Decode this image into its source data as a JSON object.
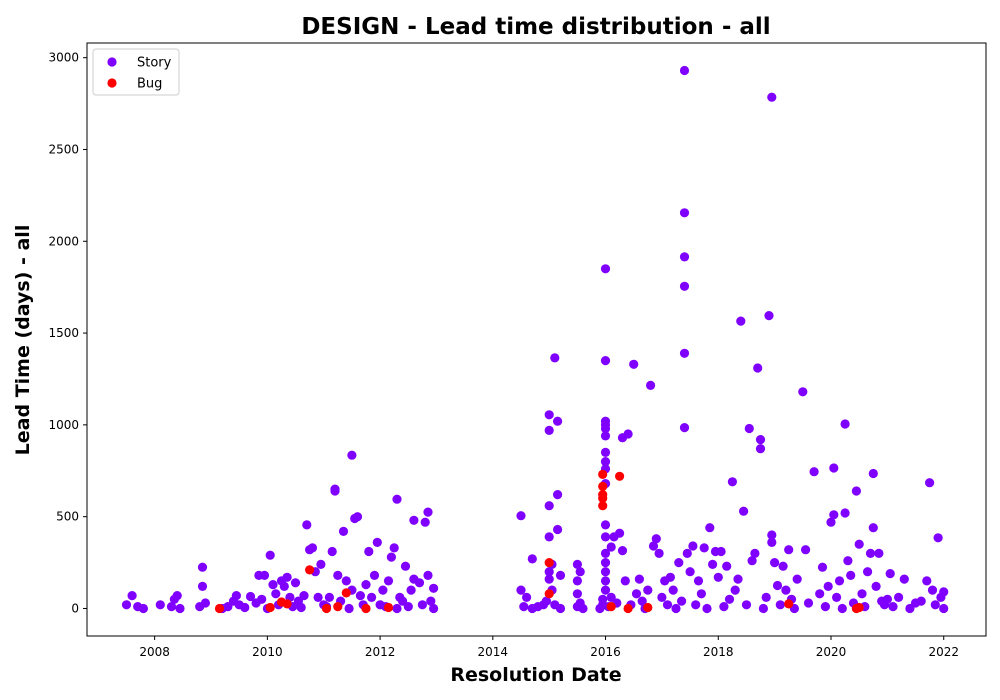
{
  "chart_data": {
    "type": "scatter",
    "title": "DESIGN - Lead time distribution - all",
    "xlabel": "Resolution Date",
    "ylabel": "Lead Time (days) - all",
    "xlim": [
      2006.8,
      2022.75
    ],
    "ylim": [
      -150,
      3080
    ],
    "xticks": [
      2008,
      2010,
      2012,
      2014,
      2016,
      2018,
      2020,
      2022
    ],
    "yticks": [
      0,
      500,
      1000,
      1500,
      2000,
      2500,
      3000
    ],
    "grid": false,
    "legend": "top-left",
    "series": [
      {
        "name": "Story",
        "color": "#7f00ff",
        "points": [
          [
            2007.5,
            20
          ],
          [
            2007.6,
            70
          ],
          [
            2007.7,
            10
          ],
          [
            2007.8,
            0
          ],
          [
            2008.1,
            20
          ],
          [
            2008.3,
            10
          ],
          [
            2008.35,
            50
          ],
          [
            2008.4,
            70
          ],
          [
            2008.45,
            0
          ],
          [
            2008.8,
            10
          ],
          [
            2008.85,
            120
          ],
          [
            2008.85,
            225
          ],
          [
            2008.9,
            30
          ],
          [
            2009.2,
            0
          ],
          [
            2009.3,
            10
          ],
          [
            2009.4,
            40
          ],
          [
            2009.45,
            70
          ],
          [
            2009.5,
            20
          ],
          [
            2009.6,
            5
          ],
          [
            2009.7,
            65
          ],
          [
            2009.8,
            30
          ],
          [
            2009.85,
            180
          ],
          [
            2009.9,
            50
          ],
          [
            2009.95,
            180
          ],
          [
            2010.0,
            0
          ],
          [
            2010.05,
            290
          ],
          [
            2010.1,
            130
          ],
          [
            2010.15,
            80
          ],
          [
            2010.2,
            20
          ],
          [
            2010.25,
            150
          ],
          [
            2010.3,
            120
          ],
          [
            2010.35,
            170
          ],
          [
            2010.4,
            60
          ],
          [
            2010.45,
            10
          ],
          [
            2010.5,
            140
          ],
          [
            2010.55,
            40
          ],
          [
            2010.6,
            5
          ],
          [
            2010.65,
            70
          ],
          [
            2010.7,
            455
          ],
          [
            2010.75,
            320
          ],
          [
            2010.8,
            330
          ],
          [
            2010.85,
            200
          ],
          [
            2010.9,
            60
          ],
          [
            2010.95,
            240
          ],
          [
            2011.0,
            20
          ],
          [
            2011.05,
            10
          ],
          [
            2011.1,
            60
          ],
          [
            2011.15,
            310
          ],
          [
            2011.2,
            640
          ],
          [
            2011.2,
            650
          ],
          [
            2011.25,
            180
          ],
          [
            2011.3,
            40
          ],
          [
            2011.35,
            420
          ],
          [
            2011.4,
            150
          ],
          [
            2011.45,
            0
          ],
          [
            2011.5,
            100
          ],
          [
            2011.5,
            835
          ],
          [
            2011.55,
            490
          ],
          [
            2011.6,
            500
          ],
          [
            2011.65,
            70
          ],
          [
            2011.7,
            20
          ],
          [
            2011.75,
            130
          ],
          [
            2011.8,
            310
          ],
          [
            2011.85,
            60
          ],
          [
            2011.9,
            180
          ],
          [
            2011.95,
            360
          ],
          [
            2012.0,
            20
          ],
          [
            2012.05,
            100
          ],
          [
            2012.1,
            10
          ],
          [
            2012.15,
            150
          ],
          [
            2012.2,
            280
          ],
          [
            2012.25,
            330
          ],
          [
            2012.3,
            0
          ],
          [
            2012.3,
            595
          ],
          [
            2012.35,
            60
          ],
          [
            2012.4,
            40
          ],
          [
            2012.45,
            230
          ],
          [
            2012.5,
            10
          ],
          [
            2012.55,
            100
          ],
          [
            2012.6,
            160
          ],
          [
            2012.6,
            480
          ],
          [
            2012.7,
            140
          ],
          [
            2012.75,
            20
          ],
          [
            2012.8,
            470
          ],
          [
            2012.85,
            525
          ],
          [
            2012.85,
            180
          ],
          [
            2012.9,
            40
          ],
          [
            2012.95,
            110
          ],
          [
            2012.95,
            0
          ],
          [
            2014.5,
            505
          ],
          [
            2014.5,
            100
          ],
          [
            2014.55,
            10
          ],
          [
            2014.6,
            60
          ],
          [
            2014.7,
            0
          ],
          [
            2014.7,
            270
          ],
          [
            2014.8,
            10
          ],
          [
            2014.9,
            20
          ],
          [
            2014.95,
            40
          ],
          [
            2015.0,
            160
          ],
          [
            2015.0,
            200
          ],
          [
            2015.0,
            390
          ],
          [
            2015.0,
            560
          ],
          [
            2015.0,
            970
          ],
          [
            2015.0,
            1055
          ],
          [
            2015.05,
            240
          ],
          [
            2015.05,
            100
          ],
          [
            2015.1,
            20
          ],
          [
            2015.1,
            1365
          ],
          [
            2015.15,
            430
          ],
          [
            2015.15,
            620
          ],
          [
            2015.15,
            1020
          ],
          [
            2015.2,
            0
          ],
          [
            2015.2,
            180
          ],
          [
            2015.5,
            10
          ],
          [
            2015.5,
            80
          ],
          [
            2015.5,
            150
          ],
          [
            2015.5,
            240
          ],
          [
            2015.55,
            30
          ],
          [
            2015.55,
            200
          ],
          [
            2015.6,
            0
          ],
          [
            2015.9,
            0
          ],
          [
            2015.95,
            50
          ],
          [
            2015.95,
            20
          ],
          [
            2016.0,
            100
          ],
          [
            2016.0,
            150
          ],
          [
            2016.0,
            200
          ],
          [
            2016.0,
            250
          ],
          [
            2016.0,
            300
          ],
          [
            2016.0,
            390
          ],
          [
            2016.0,
            455
          ],
          [
            2016.0,
            680
          ],
          [
            2016.0,
            760
          ],
          [
            2016.0,
            800
          ],
          [
            2016.0,
            850
          ],
          [
            2016.0,
            940
          ],
          [
            2016.0,
            980
          ],
          [
            2016.0,
            1000
          ],
          [
            2016.0,
            1020
          ],
          [
            2016.0,
            1350
          ],
          [
            2016.0,
            1850
          ],
          [
            2016.05,
            10
          ],
          [
            2016.1,
            60
          ],
          [
            2016.1,
            335
          ],
          [
            2016.15,
            390
          ],
          [
            2016.2,
            30
          ],
          [
            2016.25,
            410
          ],
          [
            2016.3,
            315
          ],
          [
            2016.3,
            930
          ],
          [
            2016.35,
            150
          ],
          [
            2016.4,
            950
          ],
          [
            2016.45,
            20
          ],
          [
            2016.5,
            1330
          ],
          [
            2016.55,
            80
          ],
          [
            2016.6,
            160
          ],
          [
            2016.65,
            40
          ],
          [
            2016.7,
            0
          ],
          [
            2016.75,
            100
          ],
          [
            2016.8,
            1215
          ],
          [
            2016.85,
            340
          ],
          [
            2016.9,
            380
          ],
          [
            2016.95,
            300
          ],
          [
            2017.0,
            60
          ],
          [
            2017.05,
            150
          ],
          [
            2017.1,
            20
          ],
          [
            2017.15,
            170
          ],
          [
            2017.2,
            100
          ],
          [
            2017.25,
            0
          ],
          [
            2017.3,
            250
          ],
          [
            2017.35,
            40
          ],
          [
            2017.4,
            1390
          ],
          [
            2017.4,
            1755
          ],
          [
            2017.4,
            1915
          ],
          [
            2017.4,
            2155
          ],
          [
            2017.4,
            2930
          ],
          [
            2017.4,
            985
          ],
          [
            2017.45,
            300
          ],
          [
            2017.5,
            200
          ],
          [
            2017.55,
            340
          ],
          [
            2017.6,
            20
          ],
          [
            2017.65,
            150
          ],
          [
            2017.7,
            80
          ],
          [
            2017.75,
            330
          ],
          [
            2017.8,
            0
          ],
          [
            2017.85,
            440
          ],
          [
            2017.9,
            240
          ],
          [
            2017.95,
            310
          ],
          [
            2018.0,
            170
          ],
          [
            2018.05,
            310
          ],
          [
            2018.1,
            10
          ],
          [
            2018.15,
            230
          ],
          [
            2018.2,
            50
          ],
          [
            2018.25,
            690
          ],
          [
            2018.3,
            100
          ],
          [
            2018.35,
            160
          ],
          [
            2018.4,
            1565
          ],
          [
            2018.45,
            530
          ],
          [
            2018.5,
            20
          ],
          [
            2018.55,
            980
          ],
          [
            2018.6,
            260
          ],
          [
            2018.65,
            300
          ],
          [
            2018.7,
            1310
          ],
          [
            2018.75,
            870
          ],
          [
            2018.75,
            920
          ],
          [
            2018.8,
            0
          ],
          [
            2018.85,
            60
          ],
          [
            2018.9,
            1595
          ],
          [
            2018.95,
            2785
          ],
          [
            2018.95,
            400
          ],
          [
            2018.95,
            360
          ],
          [
            2019.0,
            250
          ],
          [
            2019.05,
            125
          ],
          [
            2019.1,
            20
          ],
          [
            2019.15,
            230
          ],
          [
            2019.2,
            100
          ],
          [
            2019.25,
            320
          ],
          [
            2019.3,
            50
          ],
          [
            2019.35,
            0
          ],
          [
            2019.4,
            160
          ],
          [
            2019.5,
            1180
          ],
          [
            2019.55,
            320
          ],
          [
            2019.6,
            30
          ],
          [
            2019.7,
            745
          ],
          [
            2019.8,
            80
          ],
          [
            2019.85,
            225
          ],
          [
            2019.9,
            10
          ],
          [
            2019.95,
            120
          ],
          [
            2020.0,
            470
          ],
          [
            2020.05,
            510
          ],
          [
            2020.05,
            765
          ],
          [
            2020.1,
            60
          ],
          [
            2020.15,
            150
          ],
          [
            2020.2,
            0
          ],
          [
            2020.25,
            1005
          ],
          [
            2020.25,
            520
          ],
          [
            2020.3,
            260
          ],
          [
            2020.35,
            180
          ],
          [
            2020.4,
            30
          ],
          [
            2020.45,
            640
          ],
          [
            2020.5,
            350
          ],
          [
            2020.55,
            80
          ],
          [
            2020.6,
            10
          ],
          [
            2020.65,
            200
          ],
          [
            2020.7,
            300
          ],
          [
            2020.75,
            440
          ],
          [
            2020.75,
            735
          ],
          [
            2020.8,
            120
          ],
          [
            2020.85,
            300
          ],
          [
            2020.9,
            40
          ],
          [
            2020.95,
            20
          ],
          [
            2021.0,
            50
          ],
          [
            2021.05,
            190
          ],
          [
            2021.1,
            10
          ],
          [
            2021.2,
            60
          ],
          [
            2021.3,
            160
          ],
          [
            2021.4,
            0
          ],
          [
            2021.5,
            30
          ],
          [
            2021.6,
            40
          ],
          [
            2021.7,
            150
          ],
          [
            2021.75,
            685
          ],
          [
            2021.8,
            100
          ],
          [
            2021.85,
            20
          ],
          [
            2021.9,
            385
          ],
          [
            2021.95,
            60
          ],
          [
            2022.0,
            90
          ],
          [
            2022.0,
            0
          ]
        ]
      },
      {
        "name": "Bug",
        "color": "#ff0000",
        "points": [
          [
            2009.15,
            0
          ],
          [
            2010.05,
            5
          ],
          [
            2010.25,
            35
          ],
          [
            2010.35,
            25
          ],
          [
            2010.75,
            210
          ],
          [
            2011.05,
            0
          ],
          [
            2011.25,
            10
          ],
          [
            2011.4,
            85
          ],
          [
            2011.75,
            0
          ],
          [
            2012.15,
            5
          ],
          [
            2015.0,
            80
          ],
          [
            2015.0,
            250
          ],
          [
            2015.95,
            560
          ],
          [
            2015.95,
            600
          ],
          [
            2015.95,
            620
          ],
          [
            2015.95,
            665
          ],
          [
            2015.95,
            730
          ],
          [
            2016.25,
            720
          ],
          [
            2016.1,
            10
          ],
          [
            2016.4,
            0
          ],
          [
            2016.75,
            5
          ],
          [
            2019.25,
            25
          ],
          [
            2020.45,
            0
          ],
          [
            2020.5,
            5
          ]
        ]
      }
    ]
  }
}
